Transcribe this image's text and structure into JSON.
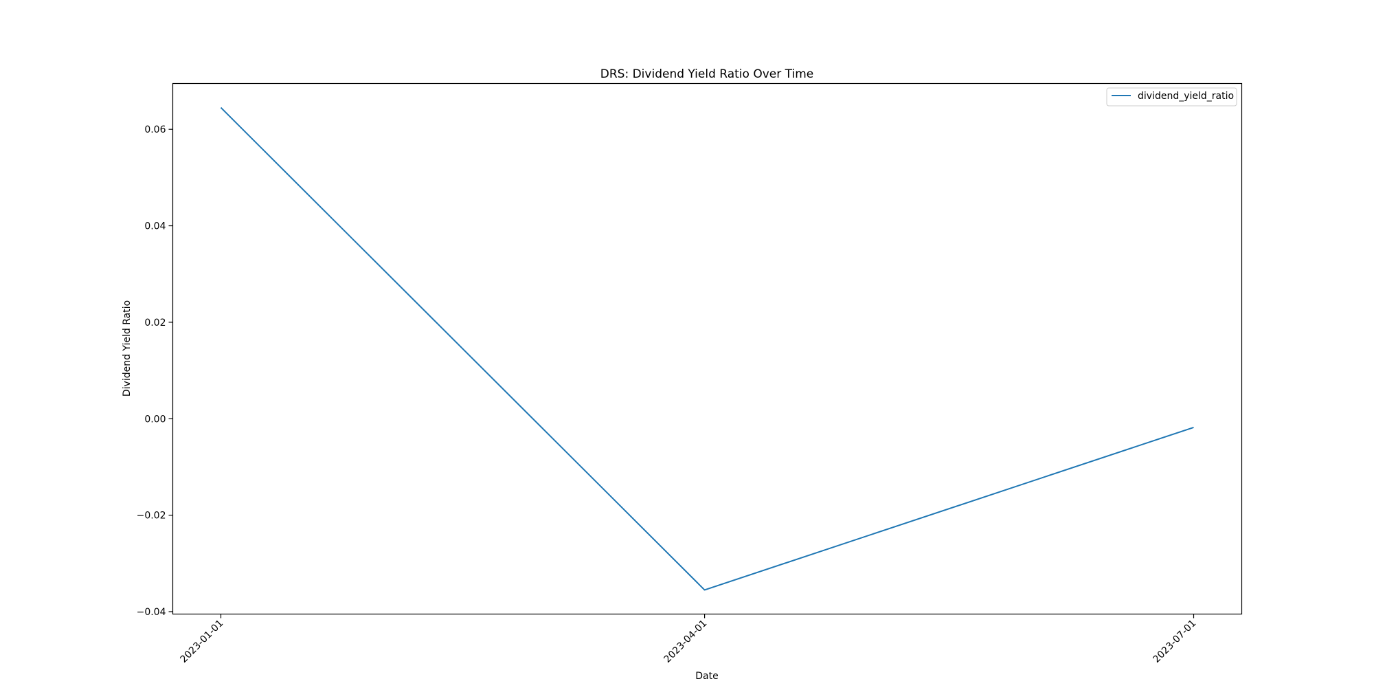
{
  "chart_data": {
    "type": "line",
    "title": "DRS: Dividend Yield Ratio Over Time",
    "xlabel": "Date",
    "ylabel": "Dividend Yield Ratio",
    "x": [
      "2023-01-01",
      "2023-04-01",
      "2023-07-01"
    ],
    "series": [
      {
        "name": "dividend_yield_ratio",
        "values": [
          0.0645,
          -0.0355,
          -0.0018
        ],
        "color": "#1f77b4"
      }
    ],
    "ylim": [
      -0.0405,
      0.0695
    ],
    "yticks": [
      -0.04,
      -0.02,
      0.0,
      0.02,
      0.04,
      0.06
    ],
    "ytick_labels": [
      "−0.04",
      "−0.02",
      "0.00",
      "0.02",
      "0.04",
      "0.06"
    ],
    "xtick_labels": [
      "2023-01-01",
      "2023-04-01",
      "2023-07-01"
    ],
    "grid": false,
    "legend_position": "top-right"
  }
}
